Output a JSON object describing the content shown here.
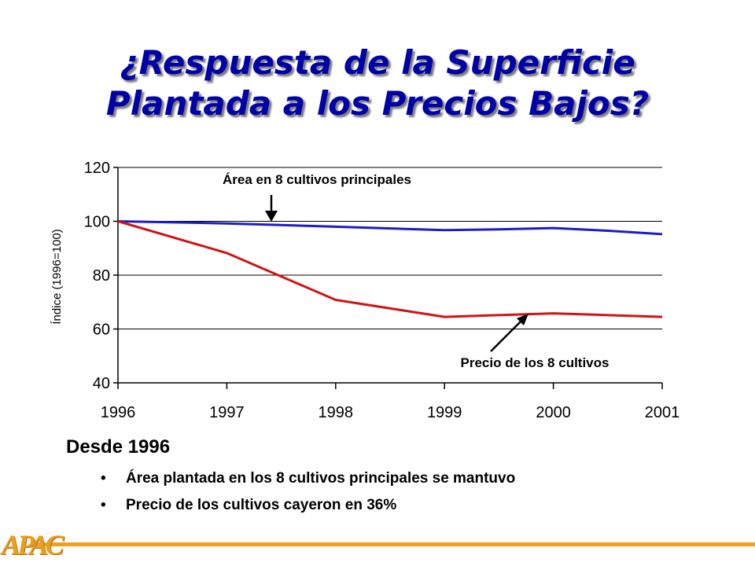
{
  "slide": {
    "title_line1": "¿Respuesta de la Superficie",
    "title_line2": "Plantada a los Precios Bajos?",
    "summary_heading": "Desde 1996",
    "bullets": [
      "Área plantada en los 8 cultivos principales se mantuvo",
      "Precio de los cultivos cayeron en 36%"
    ],
    "logo_text": "APAC",
    "accent_color": "#f0a020"
  },
  "chart_data": {
    "type": "line",
    "title": "",
    "xlabel": "",
    "ylabel": "Índice (1996=100)",
    "ylim": [
      40,
      120
    ],
    "yticks": [
      40,
      60,
      80,
      100,
      120
    ],
    "xlim": [
      1996,
      2001
    ],
    "x": [
      1996,
      1997,
      1998,
      1999,
      2000,
      2001
    ],
    "grid": "horizontal",
    "series": [
      {
        "name": "",
        "color": "#1c1cc8",
        "x": [
          1996,
          1997,
          1998,
          1999,
          1999.5,
          2000,
          2000.5,
          2001
        ],
        "values": [
          100,
          99.2,
          98,
          96.7,
          97,
          97.5,
          96.5,
          95.2
        ]
      },
      {
        "name": "",
        "color": "#d01414",
        "x": [
          1996,
          1997,
          1998,
          1999,
          2000,
          2001
        ],
        "values": [
          100,
          88.2,
          70.8,
          64.5,
          65.8,
          64.5
        ]
      }
    ],
    "annotations": [
      {
        "text": "Área en 8 cultivos principales",
        "series": 0
      },
      {
        "text": "Precio de los 8 cultivos",
        "series": 1
      }
    ]
  }
}
